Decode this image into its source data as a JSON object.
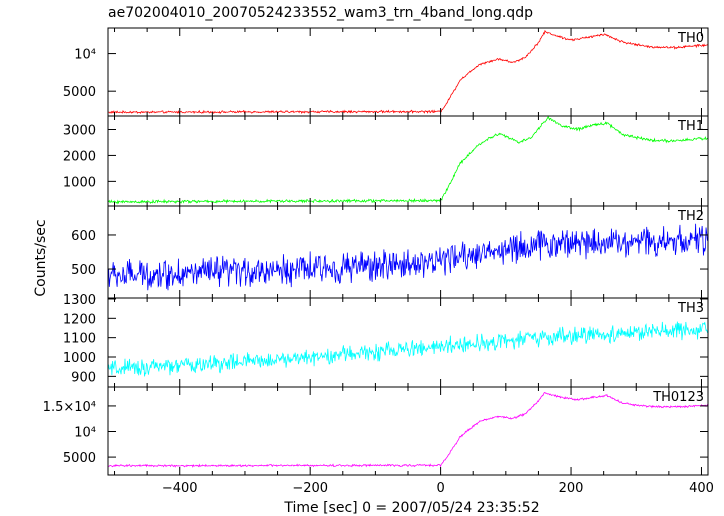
{
  "figure": {
    "title": "ae702004010_20070524233552_wam3_trn_4band_long.qdp",
    "xlabel": "Time [sec] 0 = 2007/05/24 23:35:52",
    "ylabel": "Counts/sec"
  },
  "chart_data": [
    {
      "type": "line",
      "series": [
        {
          "name": "TH0",
          "color": "#ff0000"
        }
      ],
      "xlim": [
        -510,
        410
      ],
      "ylim": [
        1700,
        13400
      ],
      "xticks": [
        -400,
        -200,
        0,
        200,
        400
      ],
      "yticks": [
        {
          "value": 5000,
          "label": "5000"
        },
        {
          "value": 10000,
          "label": "10⁴"
        }
      ],
      "baseline": 2200,
      "level_points": [
        [
          -510,
          2200
        ],
        [
          0,
          2300
        ],
        [
          10,
          3500
        ],
        [
          30,
          6500
        ],
        [
          60,
          8600
        ],
        [
          90,
          9300
        ],
        [
          110,
          8800
        ],
        [
          130,
          9500
        ],
        [
          150,
          11500
        ],
        [
          160,
          12900
        ],
        [
          180,
          12300
        ],
        [
          200,
          11800
        ],
        [
          230,
          12200
        ],
        [
          250,
          12600
        ],
        [
          280,
          11500
        ],
        [
          320,
          10900
        ],
        [
          360,
          10800
        ],
        [
          400,
          11100
        ]
      ],
      "noise": 150
    },
    {
      "type": "line",
      "series": [
        {
          "name": "TH1",
          "color": "#00ff00"
        }
      ],
      "xlim": [
        -510,
        410
      ],
      "ylim": [
        50,
        3520
      ],
      "xticks": [
        -400,
        -200,
        0,
        200,
        400
      ],
      "yticks": [
        {
          "value": 1000,
          "label": "1000"
        },
        {
          "value": 2000,
          "label": "2000"
        },
        {
          "value": 3000,
          "label": "3000"
        }
      ],
      "baseline": 220,
      "level_points": [
        [
          -510,
          210
        ],
        [
          0,
          260
        ],
        [
          10,
          700
        ],
        [
          30,
          1700
        ],
        [
          60,
          2450
        ],
        [
          90,
          2850
        ],
        [
          120,
          2500
        ],
        [
          140,
          2700
        ],
        [
          155,
          3200
        ],
        [
          165,
          3450
        ],
        [
          185,
          3150
        ],
        [
          210,
          3000
        ],
        [
          240,
          3200
        ],
        [
          255,
          3250
        ],
        [
          280,
          2800
        ],
        [
          320,
          2600
        ],
        [
          360,
          2550
        ],
        [
          400,
          2650
        ]
      ],
      "noise": 55
    },
    {
      "type": "line",
      "series": [
        {
          "name": "TH2",
          "color": "#0000ff"
        }
      ],
      "xlim": [
        -510,
        410
      ],
      "ylim": [
        415,
        685
      ],
      "xticks": [
        -400,
        -200,
        0,
        200,
        400
      ],
      "yticks": [
        {
          "value": 500,
          "label": "500"
        },
        {
          "value": 600,
          "label": "600"
        }
      ],
      "baseline": 480,
      "level_points": [
        [
          -510,
          480
        ],
        [
          -300,
          492
        ],
        [
          -100,
          508
        ],
        [
          0,
          525
        ],
        [
          100,
          560
        ],
        [
          200,
          580
        ],
        [
          300,
          582
        ],
        [
          400,
          585
        ]
      ],
      "noise": 45
    },
    {
      "type": "line",
      "series": [
        {
          "name": "TH3",
          "color": "#00ffff"
        }
      ],
      "xlim": [
        -510,
        410
      ],
      "ylim": [
        845,
        1305
      ],
      "xticks": [
        -400,
        -200,
        0,
        200,
        400
      ],
      "yticks": [
        {
          "value": 900,
          "label": "900"
        },
        {
          "value": 1000,
          "label": "1000"
        },
        {
          "value": 1100,
          "label": "1100"
        },
        {
          "value": 1200,
          "label": "1200"
        },
        {
          "value": 1300,
          "label": "1300"
        }
      ],
      "baseline": 930,
      "level_points": [
        [
          -510,
          935
        ],
        [
          -300,
          975
        ],
        [
          -100,
          1025
        ],
        [
          0,
          1055
        ],
        [
          100,
          1085
        ],
        [
          200,
          1110
        ],
        [
          300,
          1125
        ],
        [
          400,
          1140
        ]
      ],
      "noise": 45
    },
    {
      "type": "line",
      "series": [
        {
          "name": "TH0123",
          "color": "#ff00ff"
        }
      ],
      "xlim": [
        -510,
        410
      ],
      "ylim": [
        1500,
        18700
      ],
      "xticks": [
        -400,
        -200,
        0,
        200,
        400
      ],
      "yticks": [
        {
          "value": 5000,
          "label": "5000"
        },
        {
          "value": 10000,
          "label": "10⁴"
        },
        {
          "value": 15000,
          "label": "1.5×10⁴"
        }
      ],
      "baseline": 3300,
      "level_points": [
        [
          -510,
          3300
        ],
        [
          0,
          3400
        ],
        [
          10,
          5000
        ],
        [
          30,
          9000
        ],
        [
          60,
          12000
        ],
        [
          90,
          13000
        ],
        [
          110,
          12500
        ],
        [
          130,
          13500
        ],
        [
          150,
          16000
        ],
        [
          160,
          17600
        ],
        [
          180,
          16800
        ],
        [
          210,
          16200
        ],
        [
          240,
          16800
        ],
        [
          255,
          17000
        ],
        [
          280,
          15500
        ],
        [
          320,
          14900
        ],
        [
          360,
          14800
        ],
        [
          400,
          15100
        ]
      ],
      "noise": 200
    }
  ]
}
